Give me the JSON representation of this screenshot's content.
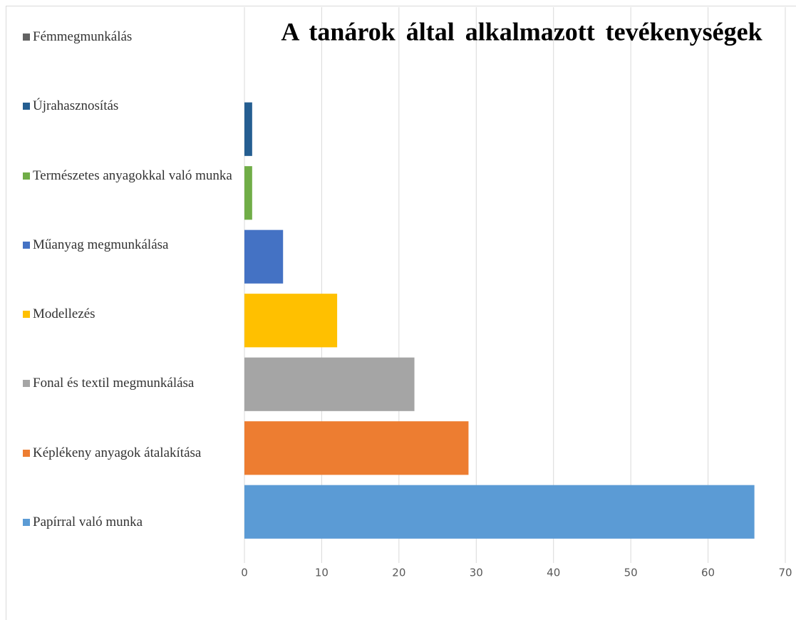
{
  "chart_data": {
    "type": "bar",
    "orientation": "horizontal",
    "title": "A tanárok által alkalmazott tevékenységek",
    "categories": [
      "Papírral való munka",
      "Képlékeny anyagok átalakítása",
      "Fonal és textil megmunkálása",
      "Modellezés",
      "Műanyag megmunkálása",
      "Természetes anyagokkal való munka",
      "Újrahasznosítás",
      "Fémmegmunkálás"
    ],
    "values": [
      66,
      29,
      22,
      12,
      5,
      1,
      1,
      0
    ],
    "colors": [
      "#5b9bd5",
      "#ed7d31",
      "#a5a5a5",
      "#ffc000",
      "#4472c4",
      "#70ad47",
      "#255e91",
      "#636363"
    ],
    "xlim": [
      0,
      70
    ],
    "xticks": [
      0,
      10,
      20,
      30,
      40,
      50,
      60,
      70
    ],
    "grid": true
  }
}
